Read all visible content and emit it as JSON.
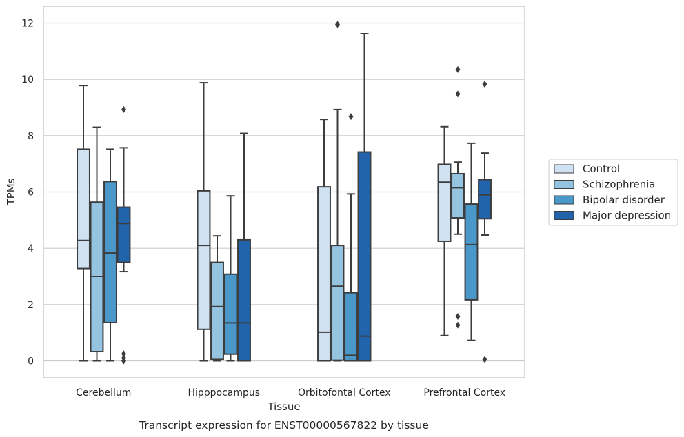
{
  "chart_data": {
    "type": "boxplot",
    "title": "",
    "caption": "Transcript expression for ENST00000567822 by tissue",
    "xlabel": "Tissue",
    "ylabel": "TPMs",
    "ylim": [
      -0.6,
      12.6
    ],
    "yticks": [
      0,
      2,
      4,
      6,
      8,
      10,
      12
    ],
    "grid": "horizontal",
    "legend_position": "right",
    "categories": [
      "Cerebellum",
      "Hipppocampus",
      "Orbitofontal Cortex",
      "Prefrontal Cortex"
    ],
    "series": [
      {
        "name": "Control",
        "color": "#d0e1f2",
        "boxes": [
          {
            "whislo": 0.0,
            "q1": 3.28,
            "med": 4.28,
            "q3": 7.52,
            "whishi": 9.78,
            "fliers": []
          },
          {
            "whislo": 0.0,
            "q1": 1.12,
            "med": 4.1,
            "q3": 6.04,
            "whishi": 9.88,
            "fliers": []
          },
          {
            "whislo": 0.0,
            "q1": 0.0,
            "med": 1.02,
            "q3": 6.18,
            "whishi": 8.58,
            "fliers": []
          },
          {
            "whislo": 0.9,
            "q1": 4.25,
            "med": 6.35,
            "q3": 6.98,
            "whishi": 8.32,
            "fliers": []
          }
        ]
      },
      {
        "name": "Schizophrenia",
        "color": "#94c4df",
        "boxes": [
          {
            "whislo": 0.0,
            "q1": 0.33,
            "med": 3.0,
            "q3": 5.64,
            "whishi": 8.3,
            "fliers": []
          },
          {
            "whislo": 0.0,
            "q1": 0.05,
            "med": 1.93,
            "q3": 3.5,
            "whishi": 4.44,
            "fliers": []
          },
          {
            "whislo": 0.0,
            "q1": 0.02,
            "med": 2.65,
            "q3": 4.1,
            "whishi": 8.93,
            "fliers": [
              11.95
            ]
          },
          {
            "whislo": 4.5,
            "q1": 5.08,
            "med": 6.15,
            "q3": 6.65,
            "whishi": 7.06,
            "fliers": [
              10.35,
              9.48,
              1.58,
              1.27
            ]
          }
        ]
      },
      {
        "name": "Bipolar disorder",
        "color": "#4a98c9",
        "boxes": [
          {
            "whislo": 0.0,
            "q1": 1.36,
            "med": 3.83,
            "q3": 6.37,
            "whishi": 7.52,
            "fliers": []
          },
          {
            "whislo": 0.0,
            "q1": 0.24,
            "med": 1.35,
            "q3": 3.08,
            "whishi": 5.86,
            "fliers": []
          },
          {
            "whislo": 0.0,
            "q1": 0.0,
            "med": 0.2,
            "q3": 2.42,
            "whishi": 5.93,
            "fliers": [
              8.68
            ]
          },
          {
            "whislo": 0.73,
            "q1": 2.17,
            "med": 4.13,
            "q3": 5.57,
            "whishi": 7.73,
            "fliers": []
          }
        ]
      },
      {
        "name": "Major depression",
        "color": "#2164ab",
        "boxes": [
          {
            "whislo": 3.17,
            "q1": 3.5,
            "med": 4.88,
            "q3": 5.46,
            "whishi": 7.57,
            "fliers": [
              8.93,
              0.25,
              0.1,
              0.0
            ]
          },
          {
            "whislo": 0.0,
            "q1": 0.0,
            "med": 1.35,
            "q3": 4.3,
            "whishi": 8.08,
            "fliers": []
          },
          {
            "whislo": 0.0,
            "q1": 0.0,
            "med": 0.88,
            "q3": 7.42,
            "whishi": 11.62,
            "fliers": []
          },
          {
            "whislo": 4.47,
            "q1": 5.05,
            "med": 5.9,
            "q3": 6.44,
            "whishi": 7.38,
            "fliers": [
              9.83,
              0.05
            ]
          }
        ]
      }
    ]
  }
}
